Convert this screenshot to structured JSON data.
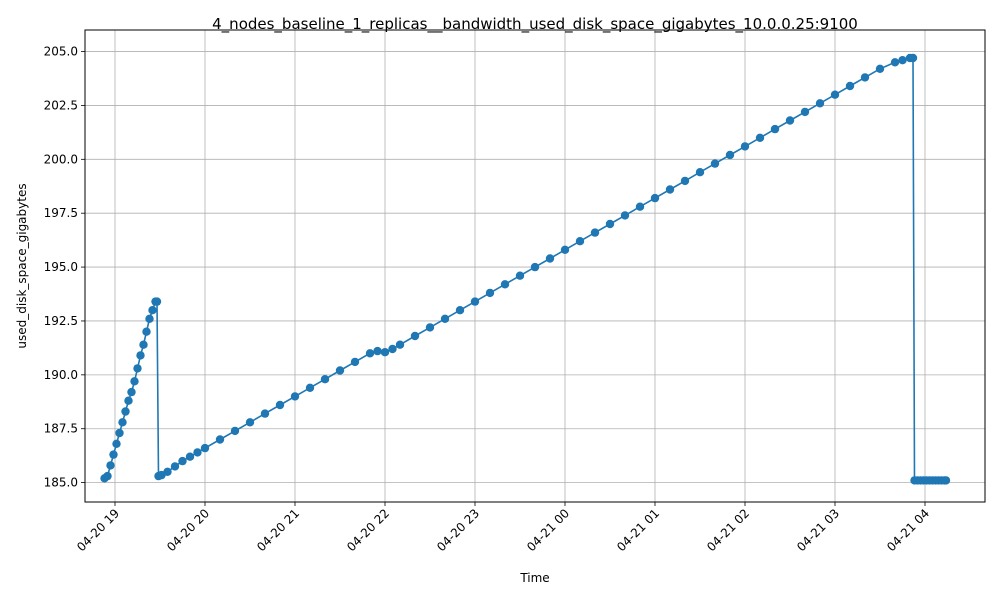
{
  "chart_data": {
    "type": "line",
    "title": "4_nodes_baseline_1_replicas__bandwidth_used_disk_space_gigabytes_10.0.0.25:9100",
    "xlabel": "Time",
    "ylabel": "used_disk_space_gigabytes",
    "x_type": "datetime",
    "xlim": [
      "2020-04-20 18:40",
      "2020-04-21 04:40"
    ],
    "ylim": [
      184.1,
      206.0
    ],
    "y_ticks": [
      185.0,
      187.5,
      190.0,
      192.5,
      195.0,
      197.5,
      200.0,
      202.5,
      205.0
    ],
    "y_tick_labels": [
      "185.0",
      "187.5",
      "190.0",
      "192.5",
      "195.0",
      "197.5",
      "200.0",
      "202.5",
      "205.0"
    ],
    "x_ticks": [
      "2020-04-20 19:00",
      "2020-04-20 20:00",
      "2020-04-20 21:00",
      "2020-04-20 22:00",
      "2020-04-20 23:00",
      "2020-04-21 00:00",
      "2020-04-21 01:00",
      "2020-04-21 02:00",
      "2020-04-21 03:00",
      "2020-04-21 04:00"
    ],
    "x_tick_labels": [
      "04-20 19",
      "04-20 20",
      "04-20 21",
      "04-20 22",
      "04-20 23",
      "04-21 00",
      "04-21 01",
      "04-21 02",
      "04-21 03",
      "04-21 04"
    ],
    "grid": true,
    "series": [
      {
        "color": "#1f77b4",
        "marker": "circle",
        "segments": [
          {
            "x": [
              "2020-04-20 18:53",
              "2020-04-20 18:55",
              "2020-04-20 18:57",
              "2020-04-20 18:59",
              "2020-04-20 19:01",
              "2020-04-20 19:03",
              "2020-04-20 19:05",
              "2020-04-20 19:07",
              "2020-04-20 19:09",
              "2020-04-20 19:11",
              "2020-04-20 19:13",
              "2020-04-20 19:15",
              "2020-04-20 19:17",
              "2020-04-20 19:19",
              "2020-04-20 19:21",
              "2020-04-20 19:23",
              "2020-04-20 19:25",
              "2020-04-20 19:27",
              "2020-04-20 19:28"
            ],
            "y": [
              185.2,
              185.3,
              185.8,
              186.3,
              186.8,
              187.3,
              187.8,
              188.3,
              188.8,
              189.2,
              189.7,
              190.3,
              190.9,
              191.4,
              192.0,
              192.6,
              193.0,
              193.4,
              193.4
            ]
          },
          {
            "x": [
              "2020-04-20 19:29",
              "2020-04-20 19:31",
              "2020-04-20 19:35",
              "2020-04-20 19:40",
              "2020-04-20 19:45",
              "2020-04-20 19:50",
              "2020-04-20 19:55",
              "2020-04-20 20:00",
              "2020-04-20 20:10",
              "2020-04-20 20:20",
              "2020-04-20 20:30",
              "2020-04-20 20:40",
              "2020-04-20 20:50",
              "2020-04-20 21:00",
              "2020-04-20 21:10",
              "2020-04-20 21:20",
              "2020-04-20 21:30",
              "2020-04-20 21:40",
              "2020-04-20 21:50",
              "2020-04-20 21:55",
              "2020-04-20 22:00",
              "2020-04-20 22:05",
              "2020-04-20 22:10",
              "2020-04-20 22:20",
              "2020-04-20 22:30",
              "2020-04-20 22:40",
              "2020-04-20 22:50",
              "2020-04-20 23:00",
              "2020-04-20 23:10",
              "2020-04-20 23:20",
              "2020-04-20 23:30",
              "2020-04-20 23:40",
              "2020-04-20 23:50",
              "2020-04-21 00:00",
              "2020-04-21 00:10",
              "2020-04-21 00:20",
              "2020-04-21 00:30",
              "2020-04-21 00:40",
              "2020-04-21 00:50",
              "2020-04-21 01:00",
              "2020-04-21 01:10",
              "2020-04-21 01:20",
              "2020-04-21 01:30",
              "2020-04-21 01:40",
              "2020-04-21 01:50",
              "2020-04-21 02:00",
              "2020-04-21 02:10",
              "2020-04-21 02:20",
              "2020-04-21 02:30",
              "2020-04-21 02:40",
              "2020-04-21 02:50",
              "2020-04-21 03:00",
              "2020-04-21 03:10",
              "2020-04-21 03:20",
              "2020-04-21 03:30",
              "2020-04-21 03:40",
              "2020-04-21 03:45",
              "2020-04-21 03:50",
              "2020-04-21 03:52"
            ],
            "y": [
              185.3,
              185.35,
              185.5,
              185.75,
              186.0,
              186.2,
              186.4,
              186.6,
              187.0,
              187.4,
              187.8,
              188.2,
              188.6,
              189.0,
              189.4,
              189.8,
              190.2,
              190.6,
              191.0,
              191.1,
              191.05,
              191.2,
              191.4,
              191.8,
              192.2,
              192.6,
              193.0,
              193.4,
              193.8,
              194.2,
              194.6,
              195.0,
              195.4,
              195.8,
              196.2,
              196.6,
              197.0,
              197.4,
              197.8,
              198.2,
              198.6,
              199.0,
              199.4,
              199.8,
              200.2,
              200.6,
              201.0,
              201.4,
              201.8,
              202.2,
              202.6,
              203.0,
              203.4,
              203.8,
              204.2,
              204.5,
              204.6,
              204.7,
              204.7
            ]
          },
          {
            "x": [
              "2020-04-21 03:53",
              "2020-04-21 03:55",
              "2020-04-21 03:57",
              "2020-04-21 03:59",
              "2020-04-21 04:01",
              "2020-04-21 04:03",
              "2020-04-21 04:05",
              "2020-04-21 04:07",
              "2020-04-21 04:09",
              "2020-04-21 04:11",
              "2020-04-21 04:13",
              "2020-04-21 04:14"
            ],
            "y": [
              185.1,
              185.1,
              185.1,
              185.1,
              185.1,
              185.1,
              185.1,
              185.1,
              185.1,
              185.1,
              185.1,
              185.1
            ]
          }
        ]
      }
    ]
  }
}
